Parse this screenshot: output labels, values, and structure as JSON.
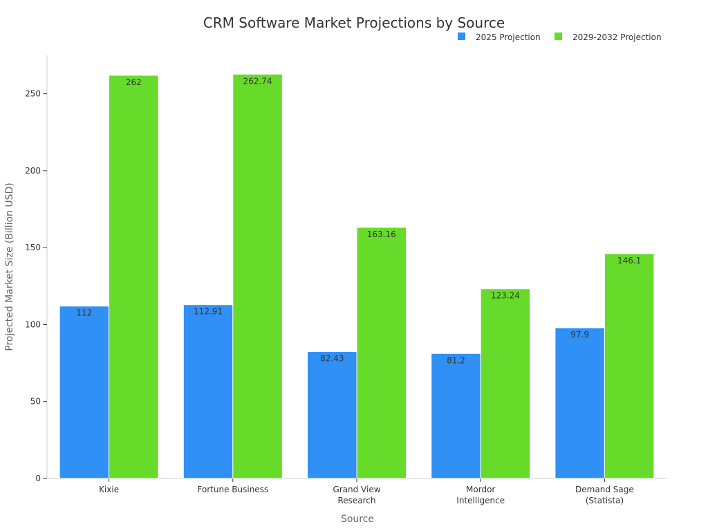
{
  "chart_data": {
    "type": "bar",
    "title": "CRM Software Market Projections by Source",
    "xlabel": "Source",
    "ylabel": "Projected Market Size (Billion USD)",
    "categories": [
      [
        "Kixie"
      ],
      [
        "Fortune Business"
      ],
      [
        "Grand View",
        "Research"
      ],
      [
        "Mordor",
        "Intelligence"
      ],
      [
        "Demand Sage",
        "(Statista)"
      ]
    ],
    "series": [
      {
        "name": "2025 Projection",
        "color": "#3090f5",
        "values": [
          112,
          112.91,
          82.43,
          81.2,
          97.9
        ]
      },
      {
        "name": "2029-2032 Projection",
        "color": "#66db29",
        "values": [
          262,
          262.74,
          163.16,
          123.24,
          146.1
        ]
      }
    ],
    "ylim": [
      0,
      275
    ],
    "yticks": [
      0,
      50,
      100,
      150,
      200,
      250
    ],
    "grid": false,
    "legend_position": "top-right"
  }
}
